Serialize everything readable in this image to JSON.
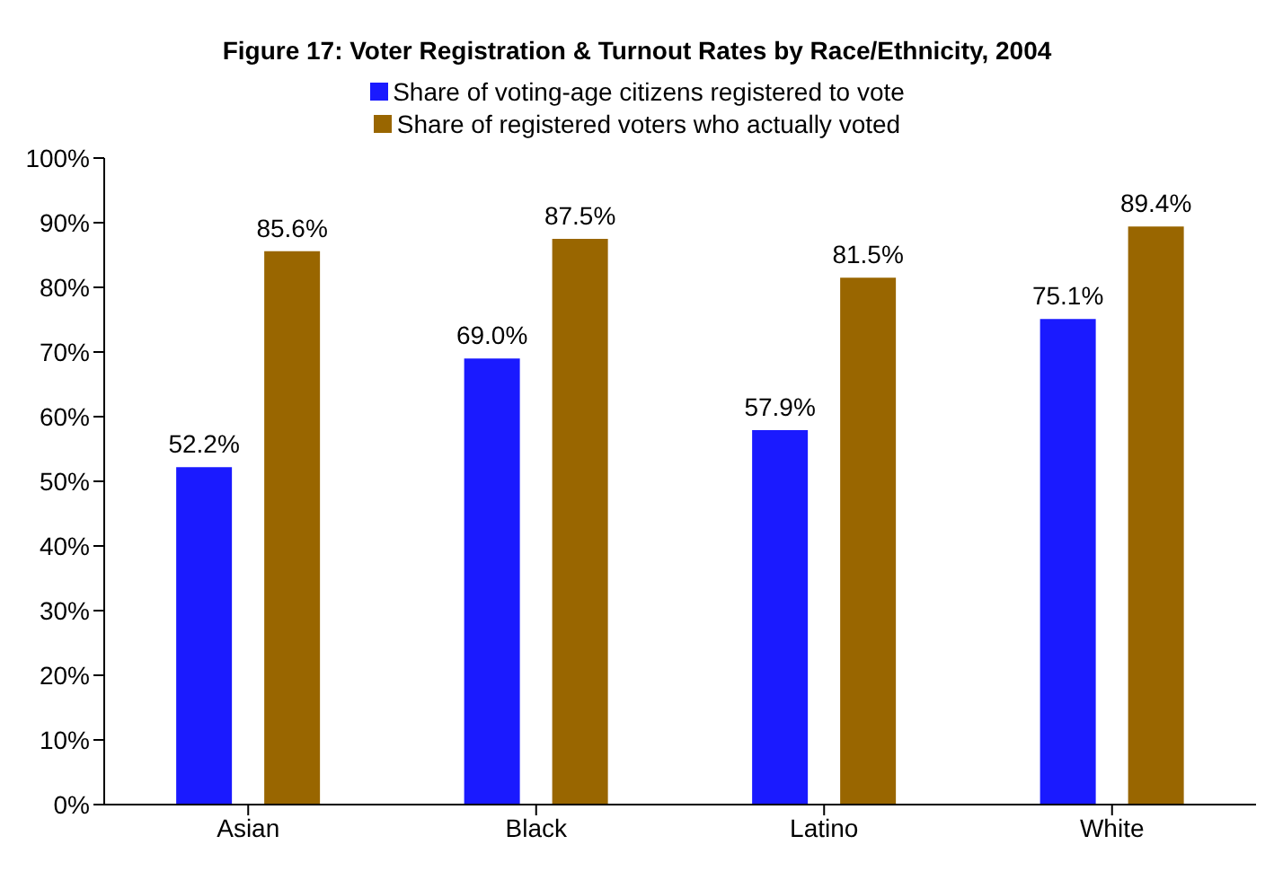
{
  "chart_data": {
    "type": "bar",
    "title": "Figure 17: Voter Registration & Turnout Rates by Race/Ethnicity, 2004",
    "categories": [
      "Asian",
      "Black",
      "Latino",
      "White"
    ],
    "series": [
      {
        "name": "Share of voting-age citizens registered to vote",
        "color": "#1a1aff",
        "values": [
          52.2,
          69.0,
          57.9,
          75.1
        ],
        "value_labels": [
          "52.2%",
          "69.0%",
          "57.9%",
          "75.1%"
        ]
      },
      {
        "name": "Share of registered voters who actually voted",
        "color": "#996600",
        "values": [
          85.6,
          87.5,
          81.5,
          89.4
        ],
        "value_labels": [
          "85.6%",
          "87.5%",
          "81.5%",
          "89.4%"
        ]
      }
    ],
    "ylim": [
      0,
      100
    ],
    "yticks": [
      {
        "value": 0,
        "label": "0%"
      },
      {
        "value": 10,
        "label": "10%"
      },
      {
        "value": 20,
        "label": "20%"
      },
      {
        "value": 30,
        "label": "30%"
      },
      {
        "value": 40,
        "label": "40%"
      },
      {
        "value": 50,
        "label": "50%"
      },
      {
        "value": 60,
        "label": "60%"
      },
      {
        "value": 70,
        "label": "70%"
      },
      {
        "value": 80,
        "label": "80%"
      },
      {
        "value": 90,
        "label": "90%"
      },
      {
        "value": 100,
        "label": "100%"
      }
    ],
    "legend": "top",
    "grid": false
  }
}
